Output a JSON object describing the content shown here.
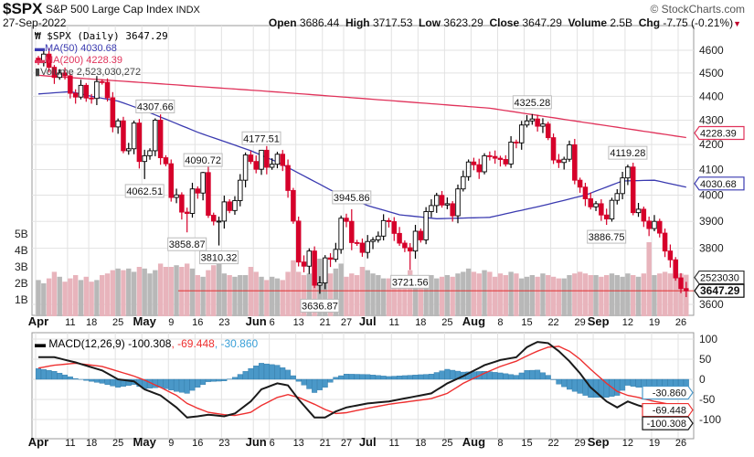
{
  "header": {
    "symbol": "$SPX",
    "name": "S&P 500 Large Cap Index",
    "exchange": "INDX",
    "brand": "© StockCharts.com",
    "date": "27-Sep-2022",
    "open_label": "Open",
    "open": "3686.44",
    "high_label": "High",
    "high": "3717.53",
    "low_label": "Low",
    "low": "3623.29",
    "close_label": "Close",
    "close": "3647.29",
    "volume_label": "Volume",
    "volume": "2.5B",
    "chg_label": "Chg",
    "chg": "-7.75 (-0.21%)"
  },
  "legend": {
    "price": "$SPX (Daily) 3647.29",
    "ma50": "MA(50) 4030.68",
    "ma200": "MA(200) 4228.39",
    "volume": "Volume 2,523,030,272",
    "macd_name": "MACD(12,26,9)",
    "macd": "-100.308",
    "signal": ", -69.448",
    "hist": ", -30.860"
  },
  "colors": {
    "up": "#000000",
    "down": "#d6002a",
    "ma50": "#3a3ab0",
    "ma200": "#e0325a",
    "vol_up": "#b8b8b8",
    "vol_down": "#e8b4bc",
    "hist": "#4a98c8",
    "macd": "#1a1a1a",
    "signal": "#ee3030"
  },
  "chart_data": [
    {
      "type": "candlestick",
      "title": "$SPX (Daily)",
      "start_date": "2022-04-01",
      "end_date": "2022-09-27",
      "price_ticks": [
        3600,
        3800,
        3900,
        4000,
        4100,
        4200,
        4300,
        4400,
        4500,
        4600
      ],
      "ylim": [
        3580,
        4640
      ],
      "scale": "log",
      "closes": [
        4545,
        4583,
        4525,
        4481,
        4500,
        4488,
        4413,
        4397,
        4447,
        4393,
        4391,
        4463,
        4460,
        4394,
        4272,
        4297,
        4175,
        4183,
        4288,
        4132,
        4155,
        4175,
        4300,
        4147,
        4123,
        3991,
        4001,
        3935,
        3930,
        4024,
        4008,
        4088,
        3923,
        3901,
        3901,
        3974,
        3941,
        3979,
        4058,
        4158,
        4132,
        4101,
        4177,
        4109,
        4121,
        4161,
        4116,
        4018,
        3901,
        3750,
        3735,
        3790,
        3667,
        3675,
        3765,
        3760,
        3796,
        3912,
        3900,
        3821,
        3819,
        3785,
        3825,
        3831,
        3845,
        3903,
        3899,
        3855,
        3819,
        3802,
        3790,
        3863,
        3831,
        3937,
        3960,
        3999,
        3962,
        3967,
        3921,
        4024,
        4072,
        4130,
        4119,
        4091,
        4155,
        4152,
        4145,
        4140,
        4122,
        4210,
        4207,
        4280,
        4297,
        4305,
        4275,
        4284,
        4228,
        4138,
        4128,
        4141,
        4199,
        4058,
        4031,
        3986,
        3955,
        3967,
        3924,
        3909,
        3980,
        4006,
        4067,
        4110,
        3933,
        3946,
        3901,
        3873,
        3900,
        3856,
        3790,
        3758,
        3693,
        3655,
        3647.29
      ],
      "volume_b": [
        2.2,
        2.0,
        2.3,
        2.7,
        2.4,
        2.1,
        2.3,
        2.5,
        2.2,
        2.4,
        2.1,
        2.2,
        2.5,
        2.6,
        2.8,
        2.9,
        2.8,
        2.9,
        2.7,
        3.0,
        2.9,
        2.6,
        2.8,
        3.2,
        3.0,
        3.0,
        3.1,
        3.0,
        3.2,
        2.9,
        2.5,
        2.4,
        2.8,
        3.1,
        3.3,
        2.6,
        2.5,
        2.4,
        2.5,
        2.5,
        3.0,
        2.7,
        2.4,
        2.2,
        2.4,
        2.3,
        2.2,
        2.7,
        3.4,
        2.7,
        2.5,
        2.6,
        3.3,
        3.5,
        2.8,
        2.6,
        2.9,
        3.2,
        2.4,
        2.6,
        2.5,
        3.0,
        2.8,
        2.6,
        2.5,
        2.3,
        2.3,
        2.4,
        2.5,
        2.4,
        2.8,
        2.5,
        2.4,
        2.3,
        2.5,
        2.3,
        2.4,
        2.5,
        2.4,
        2.6,
        2.7,
        2.9,
        2.7,
        2.6,
        2.8,
        2.7,
        2.4,
        2.6,
        2.5,
        2.7,
        2.6,
        2.3,
        2.4,
        2.5,
        2.4,
        2.6,
        2.5,
        2.4,
        2.3,
        2.3,
        2.5,
        2.6,
        2.7,
        2.6,
        2.5,
        2.5,
        2.4,
        2.5,
        2.6,
        2.5,
        2.4,
        2.6,
        2.5,
        2.4,
        2.6,
        4.5,
        2.5,
        2.6,
        2.7,
        2.6,
        2.7,
        2.6,
        2.52
      ],
      "volume_ticks": [
        {
          "v": 1,
          "label": "1B"
        },
        {
          "v": 2,
          "label": "2B"
        },
        {
          "v": 3,
          "label": "3B"
        },
        {
          "v": 4,
          "label": "4B"
        },
        {
          "v": 5,
          "label": "5B"
        }
      ],
      "ma50": [
        [
          0,
          4410
        ],
        [
          6,
          4420
        ],
        [
          10,
          4400
        ],
        [
          15,
          4380
        ],
        [
          20,
          4340
        ],
        [
          30,
          4250
        ],
        [
          40,
          4175
        ],
        [
          45,
          4130
        ],
        [
          55,
          4020
        ],
        [
          62,
          3960
        ],
        [
          68,
          3925
        ],
        [
          75,
          3910
        ],
        [
          85,
          3915
        ],
        [
          95,
          3960
        ],
        [
          103,
          4000
        ],
        [
          110,
          4055
        ],
        [
          116,
          4058
        ],
        [
          122,
          4030.68
        ]
      ],
      "ma200": [
        [
          0,
          4490
        ],
        [
          44,
          4420
        ],
        [
          85,
          4350
        ],
        [
          100,
          4300
        ],
        [
          122,
          4228.39
        ]
      ],
      "annotations": [
        {
          "i": 22,
          "v": 4307.66,
          "pos": "above",
          "label": "4307.66"
        },
        {
          "i": 20,
          "v": 4062.51,
          "pos": "below",
          "label": "4062.51"
        },
        {
          "i": 31,
          "v": 4090.72,
          "pos": "above",
          "label": "4090.72"
        },
        {
          "i": 28,
          "v": 3858.87,
          "pos": "below",
          "label": "3858.87"
        },
        {
          "i": 34,
          "v": 3810.32,
          "pos": "below",
          "label": "3810.32"
        },
        {
          "i": 42,
          "v": 4177.51,
          "pos": "above",
          "label": "4177.51"
        },
        {
          "i": 53,
          "v": 3636.87,
          "pos": "below",
          "label": "3636.87"
        },
        {
          "i": 59,
          "v": 3945.86,
          "pos": "above",
          "label": "3945.86"
        },
        {
          "i": 70,
          "v": 3721.56,
          "pos": "below",
          "label": "3721.56"
        },
        {
          "i": 93,
          "v": 4325.28,
          "pos": "above",
          "label": "4325.28"
        },
        {
          "i": 107,
          "v": 3886.75,
          "pos": "below",
          "label": "3886.75"
        },
        {
          "i": 111,
          "v": 4119.28,
          "pos": "above",
          "label": "4119.28"
        }
      ],
      "right_badges": [
        {
          "v": 4228.39,
          "label": "4228.39",
          "color": "#e0325a"
        },
        {
          "v": 4030.68,
          "label": "4030.68",
          "color": "#3a3ab0"
        }
      ],
      "volume_badge": {
        "v": 2.523,
        "label": "2523030"
      },
      "close_badge": {
        "v": 3647.29,
        "label": "3647.29"
      },
      "x_labels": [
        {
          "i": 0,
          "label": "Apr",
          "bold": true
        },
        {
          "i": 6,
          "label": "11"
        },
        {
          "i": 10,
          "label": "18"
        },
        {
          "i": 15,
          "label": "25"
        },
        {
          "i": 20,
          "label": "May",
          "bold": true
        },
        {
          "i": 25,
          "label": "9"
        },
        {
          "i": 30,
          "label": "16"
        },
        {
          "i": 35,
          "label": "23"
        },
        {
          "i": 41,
          "label": "Jun",
          "bold": true
        },
        {
          "i": 44,
          "label": "6"
        },
        {
          "i": 49,
          "label": "13"
        },
        {
          "i": 54,
          "label": "21"
        },
        {
          "i": 58,
          "label": "27"
        },
        {
          "i": 62,
          "label": "Jul",
          "bold": true
        },
        {
          "i": 67,
          "label": "11"
        },
        {
          "i": 72,
          "label": "18"
        },
        {
          "i": 77,
          "label": "25"
        },
        {
          "i": 82,
          "label": "Aug",
          "bold": true
        },
        {
          "i": 87,
          "label": "8"
        },
        {
          "i": 92,
          "label": "15"
        },
        {
          "i": 97,
          "label": "22"
        },
        {
          "i": 102,
          "label": "29"
        },
        {
          "i": 105,
          "label": "Sep",
          "bold": true
        },
        {
          "i": 111,
          "label": "12"
        },
        {
          "i": 116,
          "label": "19"
        },
        {
          "i": 121,
          "label": "26"
        }
      ]
    },
    {
      "type": "line",
      "title": "MACD(12,26,9)",
      "ylim": [
        -130,
        110
      ],
      "ticks": [
        -100,
        -50,
        0,
        50,
        100
      ],
      "points": [
        [
          0,
          55,
          28
        ],
        [
          3,
          55,
          35
        ],
        [
          7,
          42,
          40
        ],
        [
          12,
          22,
          32
        ],
        [
          15,
          0,
          20
        ],
        [
          18,
          -5,
          8
        ],
        [
          20,
          -25,
          -2
        ],
        [
          23,
          -40,
          -20
        ],
        [
          26,
          -70,
          -40
        ],
        [
          28,
          -95,
          -60
        ],
        [
          30,
          -92,
          -72
        ],
        [
          32,
          -88,
          -82
        ],
        [
          35,
          -92,
          -88
        ],
        [
          37,
          -85,
          -90
        ],
        [
          40,
          -55,
          -82
        ],
        [
          42,
          -25,
          -65
        ],
        [
          45,
          -10,
          -45
        ],
        [
          47,
          -15,
          -38
        ],
        [
          49,
          -50,
          -45
        ],
        [
          52,
          -95,
          -62
        ],
        [
          54,
          -95,
          -75
        ],
        [
          56,
          -80,
          -85
        ],
        [
          58,
          -70,
          -83
        ],
        [
          62,
          -60,
          -72
        ],
        [
          66,
          -55,
          -62
        ],
        [
          70,
          -45,
          -55
        ],
        [
          74,
          -35,
          -48
        ],
        [
          77,
          -10,
          -35
        ],
        [
          80,
          8,
          -10
        ],
        [
          84,
          35,
          15
        ],
        [
          87,
          48,
          32
        ],
        [
          90,
          55,
          45
        ],
        [
          92,
          80,
          58
        ],
        [
          94,
          93,
          70
        ],
        [
          96,
          90,
          80
        ],
        [
          98,
          70,
          82
        ],
        [
          100,
          45,
          70
        ],
        [
          102,
          15,
          50
        ],
        [
          104,
          -20,
          25
        ],
        [
          107,
          -55,
          -10
        ],
        [
          109,
          -70,
          -30
        ],
        [
          111,
          -55,
          -40
        ],
        [
          113,
          -65,
          -45
        ],
        [
          116,
          -75,
          -55
        ],
        [
          119,
          -88,
          -62
        ],
        [
          122,
          -100.308,
          -69.448
        ]
      ],
      "badges": [
        {
          "v": -30.86,
          "label": "-30.860",
          "color": "#4a98c8"
        },
        {
          "v": -69.448,
          "label": "-69.448",
          "color": "#ee3030"
        },
        {
          "v": -100.308,
          "label": "-100.308",
          "color": "#1a1a1a"
        }
      ]
    }
  ]
}
